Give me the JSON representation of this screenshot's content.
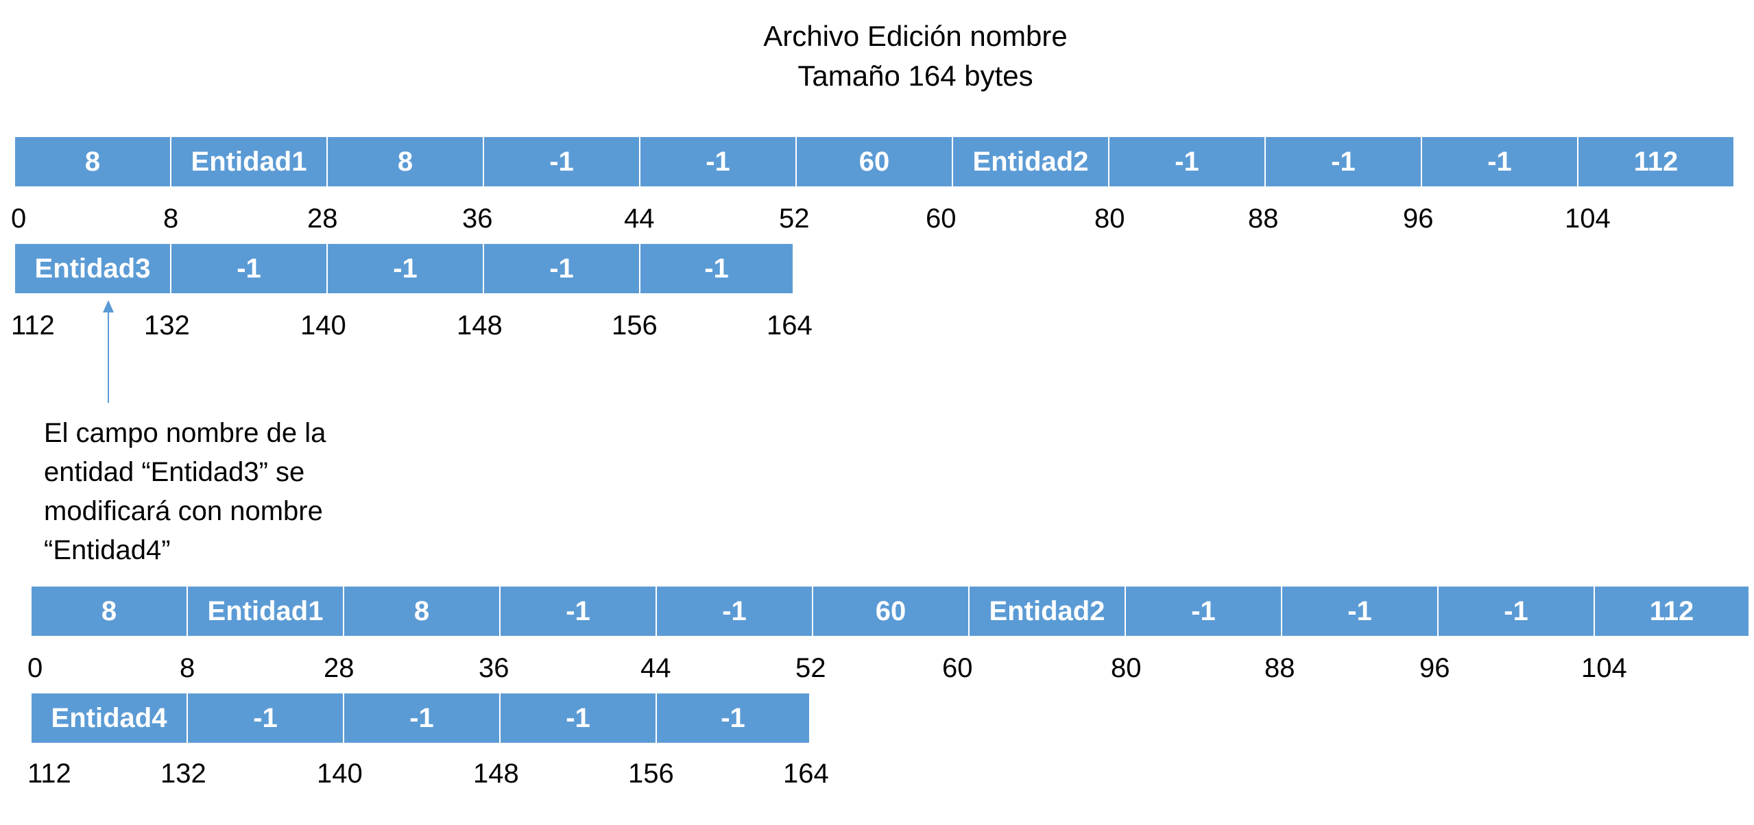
{
  "title": {
    "line1": "Archivo Edición nombre",
    "line2": "Tamaño 164 bytes"
  },
  "colors": {
    "cell_fill": "#5b9bd5",
    "cell_text": "#ffffff",
    "arrow": "#5b9bd5"
  },
  "before": {
    "row1": {
      "cells": [
        "8",
        "Entidad1",
        "8",
        "-1",
        "-1",
        "60",
        "Entidad2",
        "-1",
        "-1",
        "-1",
        "112"
      ],
      "offsets": [
        "0",
        "8",
        "28",
        "36",
        "44",
        "52",
        "60",
        "80",
        "88",
        "96",
        "104"
      ]
    },
    "row2": {
      "cells": [
        "Entidad3",
        "-1",
        "-1",
        "-1",
        "-1"
      ],
      "offsets": [
        "112",
        "132",
        "140",
        "148",
        "156",
        "164"
      ]
    }
  },
  "note": "El campo nombre de la\nentidad “Entidad3” se\nmodificará con nombre\n“Entidad4”",
  "after": {
    "row1": {
      "cells": [
        "8",
        "Entidad1",
        "8",
        "-1",
        "-1",
        "60",
        "Entidad2",
        "-1",
        "-1",
        "-1",
        "112"
      ],
      "offsets": [
        "0",
        "8",
        "28",
        "36",
        "44",
        "52",
        "60",
        "80",
        "88",
        "96",
        "104"
      ]
    },
    "row2": {
      "cells": [
        "Entidad4",
        "-1",
        "-1",
        "-1",
        "-1"
      ],
      "offsets": [
        "112",
        "132",
        "140",
        "148",
        "156",
        "164"
      ]
    }
  }
}
